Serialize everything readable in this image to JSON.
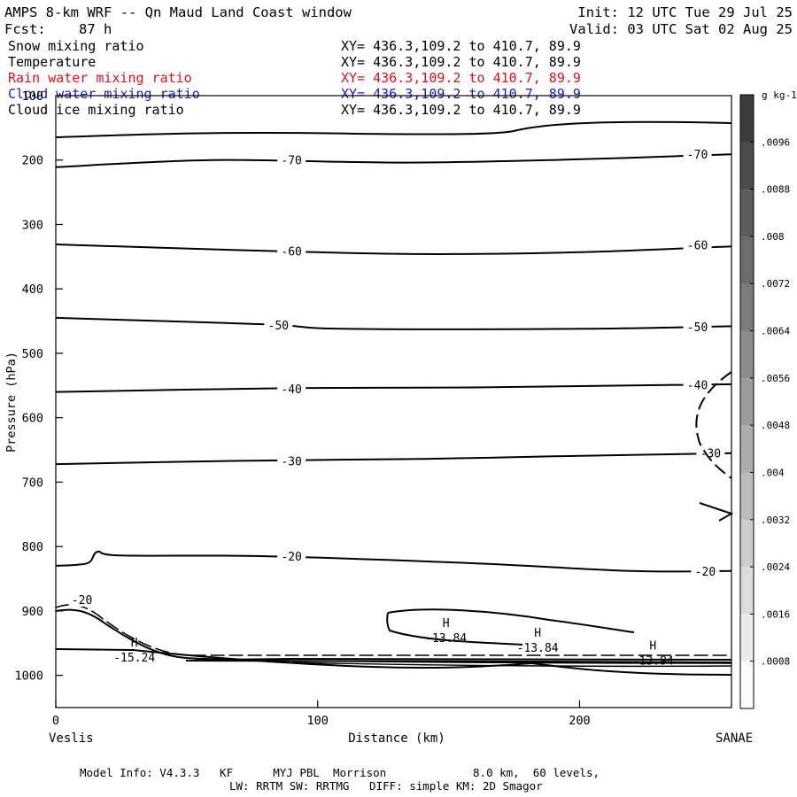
{
  "header": {
    "title": "AMPS 8-km WRF -- Qn Maud Land Coast window",
    "init": "Init: 12 UTC Tue 29 Jul 25",
    "forecast": "Fcst:    87 h",
    "valid": "Valid: 03 UTC Sat 02 Aug 25"
  },
  "fields": [
    {
      "name": "Snow mixing ratio",
      "xy": "XY= 436.3,109.2 to 410.7, 89.9",
      "color": "#000000"
    },
    {
      "name": "Temperature",
      "xy": "XY= 436.3,109.2 to 410.7, 89.9",
      "color": "#000000"
    },
    {
      "name": "Rain water mixing ratio",
      "xy": "XY= 436.3,109.2 to 410.7, 89.9",
      "color": "#e0101a"
    },
    {
      "name": "Cloud water mixing ratio",
      "xy": "XY= 436.3,109.2 to 410.7, 89.9",
      "color": "#1a1ad0"
    },
    {
      "name": "Cloud ice mixing ratio",
      "xy": "XY= 436.3,109.2 to 410.7, 89.9",
      "color": "#000000"
    }
  ],
  "footer": {
    "line1": "Model Info: V4.3.3   KF      MYJ PBL  Morrison             8.0 km,  60 levels,",
    "line2": "LW: RRTM SW: RRTMG   DIFF: simple KM: 2D Smagor"
  },
  "chart_data": {
    "type": "contour",
    "ylabel": "Pressure (hPa)",
    "xlabel": "Distance (km)",
    "x_left_label": "Veslis",
    "x_right_label": "SANAE",
    "xlim": [
      0,
      258
    ],
    "ylim_hpa": [
      1050,
      100
    ],
    "yticks": [
      100,
      200,
      300,
      400,
      500,
      600,
      700,
      800,
      900,
      1000
    ],
    "xticks": [
      0,
      100,
      200
    ],
    "isotherms": [
      {
        "label": "-70",
        "points": [
          [
            0,
            211
          ],
          [
            60,
            200
          ],
          [
            130,
            204
          ],
          [
            190,
            200
          ],
          [
            258,
            191
          ]
        ],
        "labels_at": [
          [
            90,
            200
          ],
          [
            245,
            191
          ]
        ]
      },
      {
        "label": "-60",
        "points": [
          [
            0,
            331
          ],
          [
            80,
            341
          ],
          [
            140,
            346
          ],
          [
            200,
            343
          ],
          [
            258,
            334
          ]
        ],
        "labels_at": [
          [
            90,
            341
          ],
          [
            245,
            332
          ]
        ]
      },
      {
        "label": "-50",
        "points": [
          [
            0,
            445
          ],
          [
            80,
            455
          ],
          [
            110,
            462
          ],
          [
            200,
            462
          ],
          [
            258,
            458
          ]
        ],
        "labels_at": [
          [
            85,
            456
          ],
          [
            245,
            459
          ]
        ]
      },
      {
        "label": "-40",
        "points": [
          [
            0,
            560
          ],
          [
            90,
            554
          ],
          [
            160,
            553
          ],
          [
            220,
            550
          ],
          [
            258,
            548
          ]
        ],
        "labels_at": [
          [
            90,
            555
          ],
          [
            245,
            549
          ]
        ]
      },
      {
        "label": "-30",
        "points": [
          [
            0,
            672
          ],
          [
            70,
            667
          ],
          [
            140,
            664
          ],
          [
            190,
            660
          ],
          [
            258,
            655
          ]
        ],
        "labels_at": [
          [
            90,
            667
          ],
          [
            250,
            655
          ]
        ]
      },
      {
        "label": "-20",
        "points": [
          [
            0,
            830
          ],
          [
            12,
            826
          ],
          [
            16,
            808
          ],
          [
            25,
            814
          ],
          [
            80,
            815
          ],
          [
            160,
            826
          ],
          [
            220,
            838
          ],
          [
            258,
            838
          ]
        ],
        "labels_at": [
          [
            90,
            815
          ],
          [
            248,
            838
          ]
        ]
      }
    ],
    "temperature_extrema": [
      {
        "type": "H",
        "value": "-15.24",
        "at": [
          30,
          955
        ]
      },
      {
        "type": "H",
        "value": "-13.84",
        "at": [
          149,
          925
        ]
      },
      {
        "type": "H",
        "value": "-13.84",
        "at": [
          184,
          940
        ]
      },
      {
        "type": "H",
        "value": "-13.94",
        "at": [
          228,
          960
        ]
      }
    ],
    "near_surface_label": {
      "label": "-20",
      "at": [
        10,
        885
      ]
    },
    "colorbar": {
      "unit": "g kg-1",
      "ticks": [
        ".0096",
        ".0088",
        ".008",
        ".0072",
        ".0064",
        ".0056",
        ".0048",
        ".004",
        ".0032",
        ".0024",
        ".0016",
        ".0008"
      ]
    }
  }
}
